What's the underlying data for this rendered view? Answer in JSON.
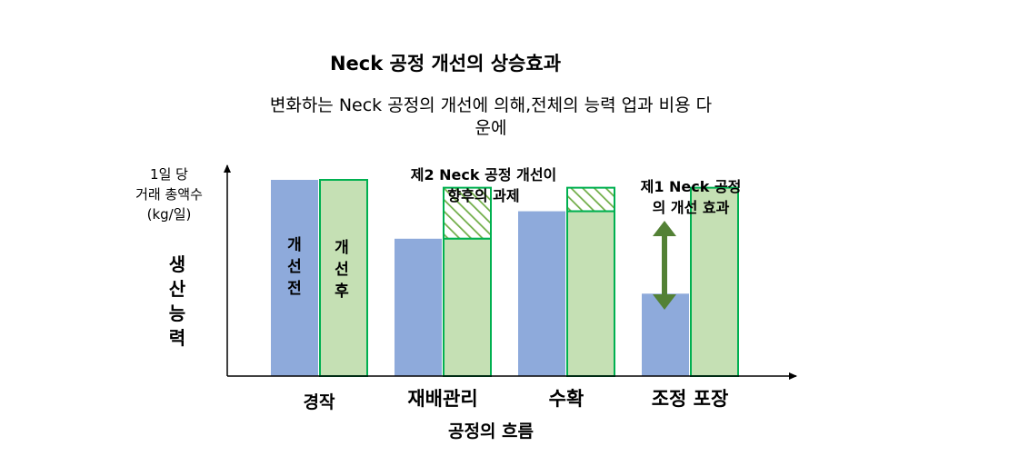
{
  "title": "Neck 공정 개선의 상승효과",
  "subtitle": {
    "line1": "변화하는 Neck 공정의 개선에 의해,전체의 능력 업과 비용 다",
    "line2": "운에"
  },
  "y_axis": {
    "label_lines": [
      "1일 당",
      "거래 총액수",
      "(kg/일)"
    ],
    "vertical_label": [
      "생",
      "산",
      "능",
      "력"
    ]
  },
  "x_axis_title": "공정의 흐름",
  "annotations": {
    "second_improvement": [
      "제2 Neck 공정 개선이",
      "향후의 과제"
    ],
    "first_improvement": [
      "제1 Neck 공정",
      "의 개선 효과"
    ]
  },
  "bar_labels": {
    "before": [
      "개",
      "선",
      "전"
    ],
    "after": [
      "개",
      "선",
      "후"
    ]
  },
  "colors": {
    "before": "#8eaadb",
    "after": "#c5e0b4",
    "after_border": "#00b050",
    "arrow": "#538135",
    "axis": "#000000"
  },
  "chart_data": {
    "type": "bar",
    "title": "Neck 공정 개선의 상승효과",
    "categories": [
      "경작",
      "재배관리",
      "수확",
      "조정 포장"
    ],
    "ylim": [
      0,
      100
    ],
    "series": [
      {
        "name": "개선전",
        "values": [
          100,
          70,
          84,
          42
        ]
      },
      {
        "name": "개선후",
        "values": [
          100,
          70,
          84,
          96
        ]
      }
    ],
    "potential": [
      0,
      96,
      96,
      0
    ]
  }
}
